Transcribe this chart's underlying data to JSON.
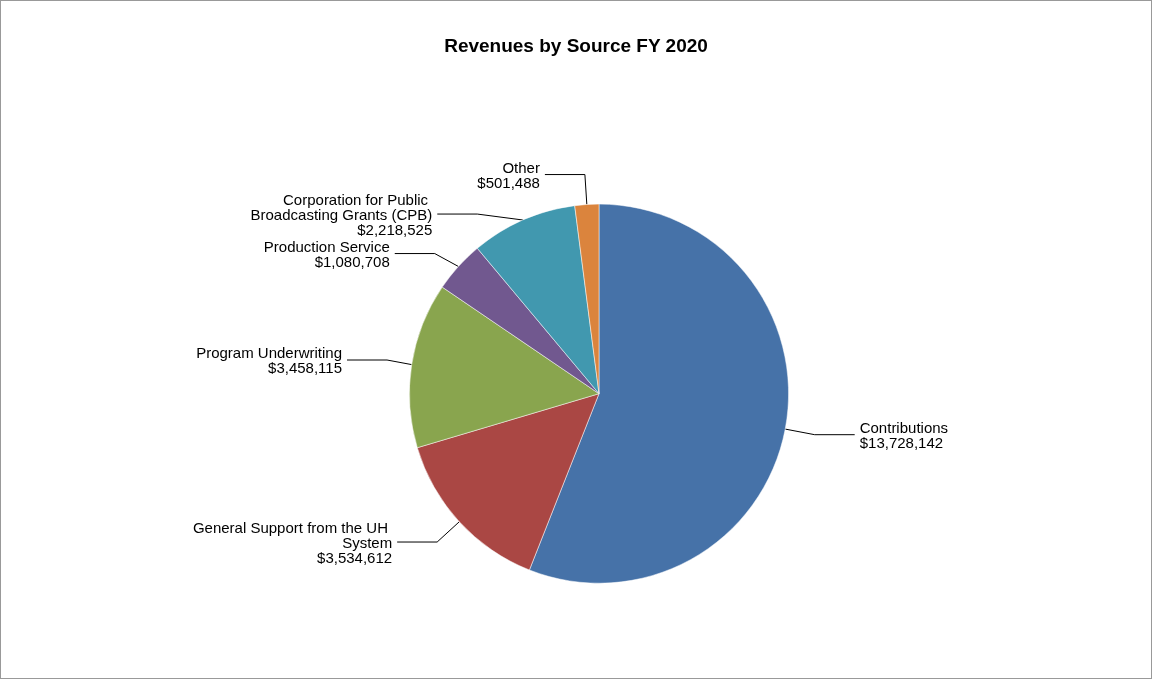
{
  "chart_data": {
    "type": "pie",
    "title": "Revenues by Source FY 2020",
    "categories": [
      "Contributions",
      "General Support from the UH System",
      "Program Underwriting",
      "Production Service",
      "Corporation for Public Broadcasting Grants (CPB)",
      "Other"
    ],
    "values": [
      13728142,
      3534612,
      3458115,
      1080708,
      2218525,
      501488
    ],
    "value_labels": [
      "$13,728,142",
      "$3,534,612",
      "$3,458,115",
      "$1,080,708",
      "$2,218,525",
      "$501,488"
    ],
    "colors": [
      "#4672a8",
      "#aa4744",
      "#89a54e",
      "#71588f",
      "#4198af",
      "#db843d"
    ],
    "legend": false
  }
}
